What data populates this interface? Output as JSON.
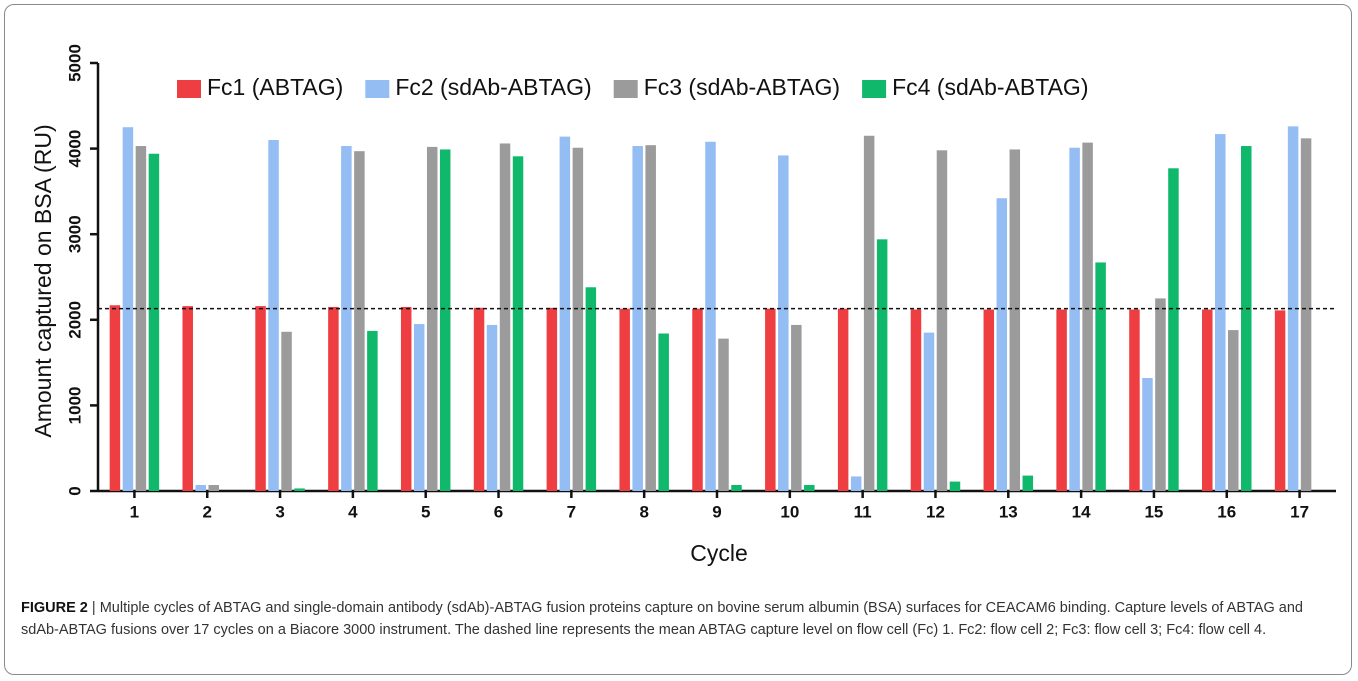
{
  "chart_data": {
    "type": "bar",
    "xlabel": "Cycle",
    "ylabel": "Amount captured on BSA (RU)",
    "categories": [
      "1",
      "2",
      "3",
      "4",
      "5",
      "6",
      "7",
      "8",
      "9",
      "10",
      "11",
      "12",
      "13",
      "14",
      "15",
      "16",
      "17"
    ],
    "series": [
      {
        "name": "Fc1 (ABTAG)",
        "color": "#ef3e42",
        "values": [
          2170,
          2160,
          2160,
          2150,
          2150,
          2140,
          2140,
          2130,
          2130,
          2130,
          2130,
          2120,
          2120,
          2120,
          2120,
          2120,
          2110
        ]
      },
      {
        "name": "Fc2 (sdAb-ABTAG)",
        "color": "#94bdf3",
        "values": [
          4250,
          70,
          4100,
          4030,
          1950,
          1940,
          4140,
          4030,
          4080,
          3920,
          170,
          1850,
          3420,
          4010,
          1320,
          4170,
          4260
        ]
      },
      {
        "name": "Fc3 (sdAb-ABTAG)",
        "color": "#9b9b9b",
        "values": [
          4030,
          70,
          1860,
          3970,
          4020,
          4060,
          4010,
          4040,
          1780,
          1940,
          4150,
          3980,
          3990,
          4070,
          2250,
          1880,
          4120
        ]
      },
      {
        "name": "Fc4 (sdAb-ABTAG)",
        "color": "#10b86b",
        "values": [
          3940,
          0,
          30,
          1870,
          3990,
          3910,
          2380,
          1840,
          70,
          70,
          2940,
          110,
          180,
          2670,
          3770,
          4030,
          0
        ]
      }
    ],
    "mean_line": 2130,
    "ylim": [
      0,
      5000
    ],
    "yticks": [
      0,
      1000,
      2000,
      3000,
      4000,
      5000
    ],
    "legend": "top"
  },
  "caption": {
    "label": "FIGURE 2",
    "text": "| Multiple cycles of ABTAG and single-domain antibody (sdAb)-ABTAG fusion proteins capture on bovine serum albumin (BSA) surfaces for CEACAM6 binding. Capture levels of ABTAG and sdAb-ABTAG fusions over 17 cycles on a Biacore 3000 instrument. The dashed line represents the mean ABTAG capture level on flow cell (Fc) 1. Fc2: flow cell 2; Fc3: flow cell 3; Fc4: flow cell 4."
  }
}
